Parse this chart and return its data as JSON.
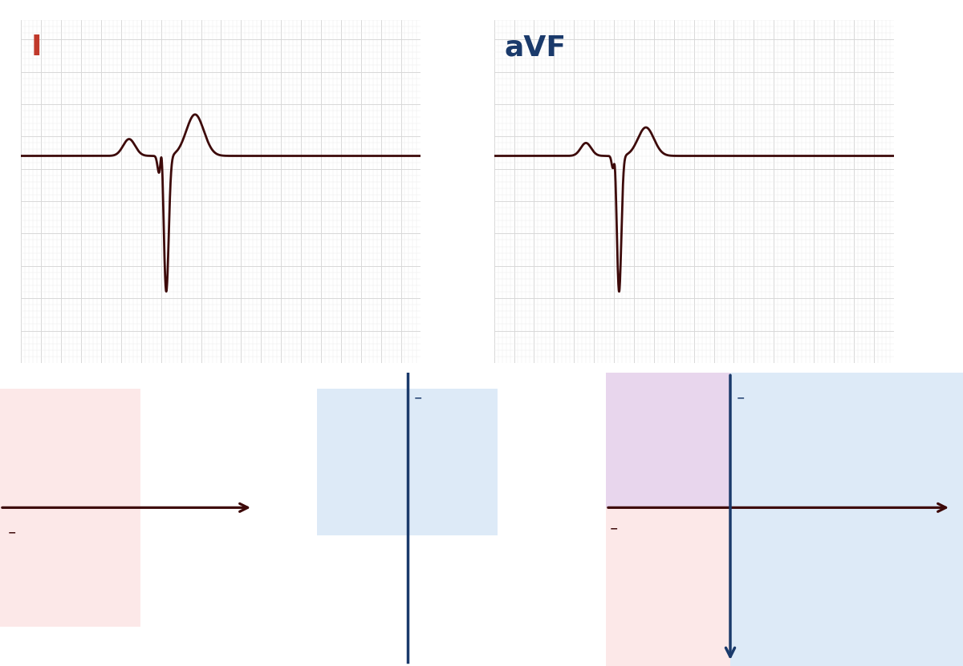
{
  "ecg_color": "#3d0a0a",
  "grid_major_color": "#d8d8d8",
  "grid_minor_color": "#ebebeb",
  "label_I_color": "#c0392b",
  "label_aVF_color": "#1a3a6b",
  "bg_color": "#ffffff",
  "pink_color": "#fce8e8",
  "blue_color": "#ddeaf7",
  "purple_color": "#e8d6ed",
  "arrow_color": "#3d0a0a",
  "axis_line_color": "#1a3a6b",
  "label_I": "I",
  "label_aVF": "aVF",
  "minus_color_dark": "#3d0a0a",
  "minus_color_blue": "#1a3a6b",
  "ecg1_xlim": [
    0,
    10
  ],
  "ecg1_ylim": [
    -1.6,
    1.0
  ],
  "ecg2_xlim": [
    0,
    10
  ],
  "ecg2_ylim": [
    -1.6,
    1.0
  ]
}
